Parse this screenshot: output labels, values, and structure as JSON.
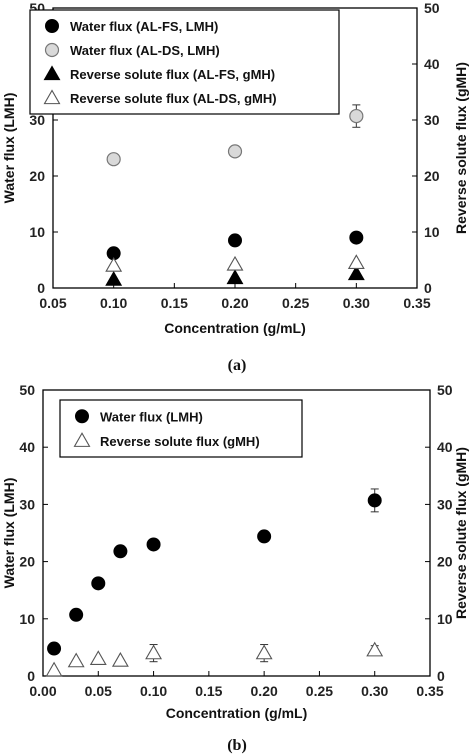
{
  "chart_data": [
    {
      "type": "scatter",
      "panel_label": "(a)",
      "xlabel": "Concentration (g/mL)",
      "ylabel": "Water flux (LMH)",
      "y2label": "Reverse solute flux (gMH)",
      "xlim": [
        0.05,
        0.35
      ],
      "ylim": [
        0,
        50
      ],
      "y2lim": [
        0,
        50
      ],
      "xticks": [
        "0.05",
        "0.10",
        "0.15",
        "0.20",
        "0.25",
        "0.30",
        "0.35"
      ],
      "yticks": [
        "0",
        "10",
        "20",
        "30",
        "40",
        "50"
      ],
      "legend_position": "top-left",
      "series": [
        {
          "name": "Water flux (AL-FS, LMH)",
          "marker": "circle-filled",
          "x": [
            0.1,
            0.2,
            0.3
          ],
          "y": [
            6.2,
            8.5,
            9.0
          ],
          "err": [
            0,
            0,
            0
          ]
        },
        {
          "name": "Water flux (AL-DS, LMH)",
          "marker": "circle-open",
          "x": [
            0.1,
            0.2,
            0.3
          ],
          "y": [
            23.0,
            24.4,
            30.7
          ],
          "err": [
            0,
            0,
            2.0
          ]
        },
        {
          "name": "Reverse solute flux (AL-FS, gMH)",
          "marker": "triangle-filled",
          "x": [
            0.1,
            0.2,
            0.3
          ],
          "y": [
            1.5,
            1.8,
            2.5
          ],
          "err": [
            0,
            0,
            0
          ]
        },
        {
          "name": "Reverse solute flux (AL-DS, gMH)",
          "marker": "triangle-open",
          "x": [
            0.1,
            0.2,
            0.3
          ],
          "y": [
            4.0,
            4.2,
            4.5
          ],
          "err": [
            0,
            0,
            0
          ]
        }
      ]
    },
    {
      "type": "scatter",
      "panel_label": "(b)",
      "xlabel": "Concentration (g/mL)",
      "ylabel": "Water flux (LMH)",
      "y2label": "Reverse solute flux (gMH)",
      "xlim": [
        0.0,
        0.35
      ],
      "ylim": [
        0,
        50
      ],
      "y2lim": [
        0,
        50
      ],
      "xticks": [
        "0.00",
        "0.05",
        "0.10",
        "0.15",
        "0.20",
        "0.25",
        "0.30",
        "0.35"
      ],
      "yticks": [
        "0",
        "10",
        "20",
        "30",
        "40",
        "50"
      ],
      "legend_position": "top-left",
      "series": [
        {
          "name": "Water flux (LMH)",
          "marker": "circle-filled",
          "x": [
            0.01,
            0.03,
            0.05,
            0.07,
            0.1,
            0.2,
            0.3
          ],
          "y": [
            4.8,
            10.7,
            16.2,
            21.8,
            23.0,
            24.4,
            30.7
          ],
          "err": [
            0,
            0,
            0,
            0,
            0,
            0,
            2.0
          ]
        },
        {
          "name": "Reverse solute flux (gMH)",
          "marker": "triangle-open",
          "x": [
            0.01,
            0.03,
            0.05,
            0.07,
            0.1,
            0.2,
            0.3
          ],
          "y": [
            1.0,
            2.6,
            3.0,
            2.7,
            4.0,
            4.0,
            4.5
          ],
          "err": [
            0,
            0,
            0,
            0,
            1.5,
            1.5,
            0.8
          ]
        }
      ]
    }
  ]
}
